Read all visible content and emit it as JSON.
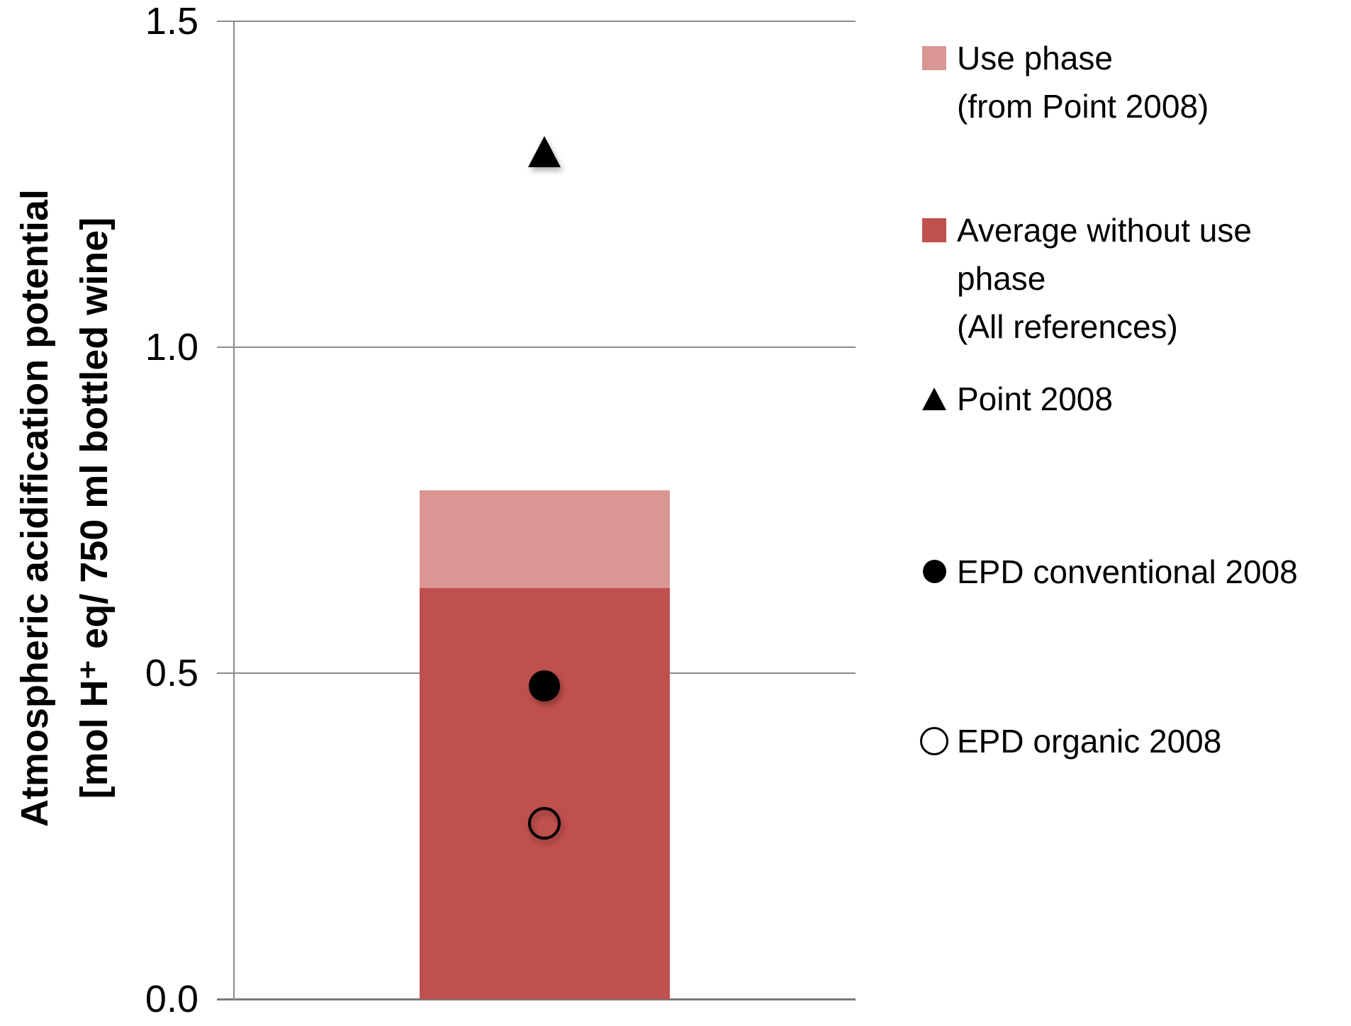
{
  "chart_data": {
    "type": "bar",
    "title": "",
    "ylabel_line1": "Atmospheric acidification potential",
    "ylabel_line2": "[mol H⁺ eq/ 750 ml bottled wine]",
    "ylim": [
      0,
      1.5
    ],
    "yticks": [
      {
        "value": 0.0,
        "label": "0.0"
      },
      {
        "value": 0.5,
        "label": "0.5"
      },
      {
        "value": 1.0,
        "label": "1.0"
      },
      {
        "value": 1.5,
        "label": "1.5"
      }
    ],
    "grid": true,
    "legend_position": "right",
    "categories": [
      ""
    ],
    "series": [
      {
        "name": "Average without use phase (All references)",
        "type": "bar-segment",
        "color": "#C0504D",
        "values": [
          0.63
        ]
      },
      {
        "name": "Use phase (from Point 2008)",
        "type": "bar-segment",
        "color": "#D99694",
        "values": [
          0.15
        ]
      },
      {
        "name": "Point 2008",
        "type": "scatter",
        "marker": "filled-triangle",
        "color": "#000000",
        "values": [
          1.3
        ]
      },
      {
        "name": "EPD conventional 2008",
        "type": "scatter",
        "marker": "filled-circle",
        "color": "#000000",
        "values": [
          0.48
        ]
      },
      {
        "name": "EPD organic 2008",
        "type": "scatter",
        "marker": "open-circle",
        "color": "#000000",
        "values": [
          0.27
        ]
      }
    ]
  },
  "legend": {
    "items": [
      {
        "marker": "square",
        "color": "#D99694",
        "lines": [
          "Use phase",
          "(from Point 2008)"
        ]
      },
      {
        "marker": "square",
        "color": "#C0504D",
        "lines": [
          "Average without use",
          "phase",
          "(All references)"
        ]
      },
      {
        "marker": "filled-triangle",
        "color": "#000000",
        "lines": [
          "Point 2008"
        ]
      },
      {
        "marker": "filled-circle",
        "color": "#000000",
        "lines": [
          "EPD conventional 2008"
        ]
      },
      {
        "marker": "open-circle",
        "color": "#000000",
        "lines": [
          "EPD organic 2008"
        ]
      }
    ]
  }
}
